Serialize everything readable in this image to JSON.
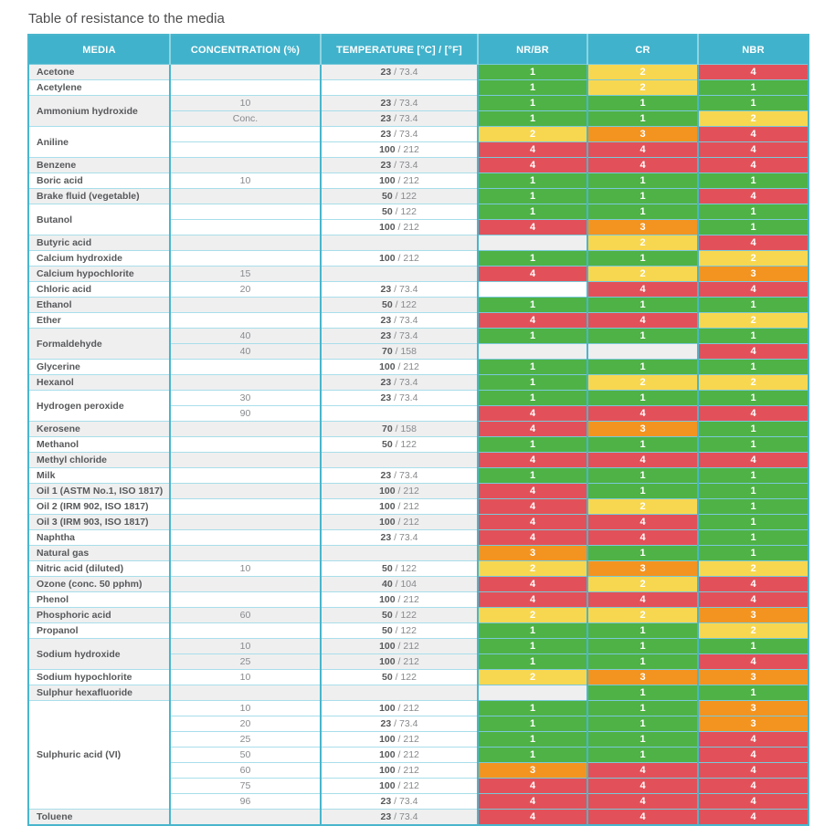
{
  "title": "Table of resistance to the media",
  "colors": {
    "header_bg": "#41b2cb",
    "teal_border": "#49b6cd",
    "teal_row_border": "#79c9da",
    "light_border": "#a8deea",
    "row_alt_bg": "#efeff0",
    "rating_1_green": "#4fb246",
    "rating_2_yellow": "#f8d750",
    "rating_3_orange": "#f39420",
    "rating_4_red": "#e25159"
  },
  "columns": [
    "MEDIA",
    "CONCENTRATION (%)",
    "TEMPERATURE [°C] / [°F]",
    "NR/BR",
    "CR",
    "NBR"
  ],
  "groups": [
    {
      "media": "Acetone",
      "shaded": true,
      "rows": [
        {
          "conc": "",
          "temp_c": "23",
          "temp_f": "73.4",
          "ratings": [
            1,
            2,
            4
          ]
        }
      ]
    },
    {
      "media": "Acetylene",
      "shaded": false,
      "rows": [
        {
          "conc": "",
          "temp_c": null,
          "temp_f": null,
          "ratings": [
            1,
            2,
            1
          ]
        }
      ]
    },
    {
      "media": "Ammonium hydroxide",
      "shaded": true,
      "rows": [
        {
          "conc": "10",
          "temp_c": "23",
          "temp_f": "73.4",
          "ratings": [
            1,
            1,
            1
          ]
        },
        {
          "conc": "Conc.",
          "temp_c": "23",
          "temp_f": "73.4",
          "ratings": [
            1,
            1,
            2
          ]
        }
      ]
    },
    {
      "media": "Aniline",
      "shaded": false,
      "rows": [
        {
          "conc": "",
          "temp_c": "23",
          "temp_f": "73.4",
          "ratings": [
            2,
            3,
            4
          ]
        },
        {
          "conc": "",
          "temp_c": "100",
          "temp_f": "212",
          "ratings": [
            4,
            4,
            4
          ]
        }
      ]
    },
    {
      "media": "Benzene",
      "shaded": true,
      "rows": [
        {
          "conc": "",
          "temp_c": "23",
          "temp_f": "73.4",
          "ratings": [
            4,
            4,
            4
          ]
        }
      ]
    },
    {
      "media": "Boric acid",
      "shaded": false,
      "rows": [
        {
          "conc": "10",
          "temp_c": "100",
          "temp_f": "212",
          "ratings": [
            1,
            1,
            1
          ]
        }
      ]
    },
    {
      "media": "Brake fluid (vegetable)",
      "shaded": true,
      "rows": [
        {
          "conc": "",
          "temp_c": "50",
          "temp_f": "122",
          "ratings": [
            1,
            1,
            4
          ]
        }
      ]
    },
    {
      "media": "Butanol",
      "shaded": false,
      "rows": [
        {
          "conc": "",
          "temp_c": "50",
          "temp_f": "122",
          "ratings": [
            1,
            1,
            1
          ]
        },
        {
          "conc": "",
          "temp_c": "100",
          "temp_f": "212",
          "ratings": [
            4,
            3,
            1
          ]
        }
      ]
    },
    {
      "media": "Butyric acid",
      "shaded": true,
      "rows": [
        {
          "conc": "",
          "temp_c": null,
          "temp_f": null,
          "ratings": [
            null,
            2,
            4
          ]
        }
      ]
    },
    {
      "media": "Calcium hydroxide",
      "shaded": false,
      "rows": [
        {
          "conc": "",
          "temp_c": "100",
          "temp_f": "212",
          "ratings": [
            1,
            1,
            2
          ]
        }
      ]
    },
    {
      "media": "Calcium hypochlorite",
      "shaded": true,
      "rows": [
        {
          "conc": "15",
          "temp_c": null,
          "temp_f": null,
          "ratings": [
            4,
            2,
            3
          ]
        }
      ]
    },
    {
      "media": "Chloric acid",
      "shaded": false,
      "rows": [
        {
          "conc": "20",
          "temp_c": "23",
          "temp_f": "73.4",
          "ratings": [
            null,
            4,
            4
          ]
        }
      ]
    },
    {
      "media": "Ethanol",
      "shaded": true,
      "rows": [
        {
          "conc": "",
          "temp_c": "50",
          "temp_f": "122",
          "ratings": [
            1,
            1,
            1
          ]
        }
      ]
    },
    {
      "media": "Ether",
      "shaded": false,
      "rows": [
        {
          "conc": "",
          "temp_c": "23",
          "temp_f": "73.4",
          "ratings": [
            4,
            4,
            2
          ]
        }
      ]
    },
    {
      "media": "Formaldehyde",
      "shaded": true,
      "rows": [
        {
          "conc": "40",
          "temp_c": "23",
          "temp_f": "73.4",
          "ratings": [
            1,
            1,
            1
          ]
        },
        {
          "conc": "40",
          "temp_c": "70",
          "temp_f": "158",
          "ratings": [
            null,
            null,
            4
          ]
        }
      ]
    },
    {
      "media": "Glycerine",
      "shaded": false,
      "rows": [
        {
          "conc": "",
          "temp_c": "100",
          "temp_f": "212",
          "ratings": [
            1,
            1,
            1
          ]
        }
      ]
    },
    {
      "media": "Hexanol",
      "shaded": true,
      "rows": [
        {
          "conc": "",
          "temp_c": "23",
          "temp_f": "73.4",
          "ratings": [
            1,
            2,
            2
          ]
        }
      ]
    },
    {
      "media": "Hydrogen peroxide",
      "shaded": false,
      "rows": [
        {
          "conc": "30",
          "temp_c": "23",
          "temp_f": "73.4",
          "ratings": [
            1,
            1,
            1
          ]
        },
        {
          "conc": "90",
          "temp_c": null,
          "temp_f": null,
          "ratings": [
            4,
            4,
            4
          ]
        }
      ]
    },
    {
      "media": "Kerosene",
      "shaded": true,
      "rows": [
        {
          "conc": "",
          "temp_c": "70",
          "temp_f": "158",
          "ratings": [
            4,
            3,
            1
          ]
        }
      ]
    },
    {
      "media": "Methanol",
      "shaded": false,
      "rows": [
        {
          "conc": "",
          "temp_c": "50",
          "temp_f": "122",
          "ratings": [
            1,
            1,
            1
          ]
        }
      ]
    },
    {
      "media": "Methyl chloride",
      "shaded": true,
      "rows": [
        {
          "conc": "",
          "temp_c": null,
          "temp_f": null,
          "ratings": [
            4,
            4,
            4
          ]
        }
      ]
    },
    {
      "media": "Milk",
      "shaded": false,
      "rows": [
        {
          "conc": "",
          "temp_c": "23",
          "temp_f": "73.4",
          "ratings": [
            1,
            1,
            1
          ]
        }
      ]
    },
    {
      "media": "Oil 1 (ASTM No.1, ISO 1817)",
      "shaded": true,
      "rows": [
        {
          "conc": "",
          "temp_c": "100",
          "temp_f": "212",
          "ratings": [
            4,
            1,
            1
          ]
        }
      ]
    },
    {
      "media": "Oil 2 (IRM 902, ISO 1817)",
      "shaded": false,
      "rows": [
        {
          "conc": "",
          "temp_c": "100",
          "temp_f": "212",
          "ratings": [
            4,
            2,
            1
          ]
        }
      ]
    },
    {
      "media": "Oil 3 (IRM 903, ISO 1817)",
      "shaded": true,
      "rows": [
        {
          "conc": "",
          "temp_c": "100",
          "temp_f": "212",
          "ratings": [
            4,
            4,
            1
          ]
        }
      ]
    },
    {
      "media": "Naphtha",
      "shaded": false,
      "rows": [
        {
          "conc": "",
          "temp_c": "23",
          "temp_f": "73.4",
          "ratings": [
            4,
            4,
            1
          ]
        }
      ]
    },
    {
      "media": "Natural gas",
      "shaded": true,
      "rows": [
        {
          "conc": "",
          "temp_c": null,
          "temp_f": null,
          "ratings": [
            3,
            1,
            1
          ]
        }
      ]
    },
    {
      "media": "Nitric acid (diluted)",
      "shaded": false,
      "rows": [
        {
          "conc": "10",
          "temp_c": "50",
          "temp_f": "122",
          "ratings": [
            2,
            3,
            2
          ]
        }
      ]
    },
    {
      "media": "Ozone (conc. 50 pphm)",
      "shaded": true,
      "rows": [
        {
          "conc": "",
          "temp_c": "40",
          "temp_f": "104",
          "ratings": [
            4,
            2,
            4
          ]
        }
      ]
    },
    {
      "media": "Phenol",
      "shaded": false,
      "rows": [
        {
          "conc": "",
          "temp_c": "100",
          "temp_f": "212",
          "ratings": [
            4,
            4,
            4
          ]
        }
      ]
    },
    {
      "media": "Phosphoric acid",
      "shaded": true,
      "rows": [
        {
          "conc": "60",
          "temp_c": "50",
          "temp_f": "122",
          "ratings": [
            2,
            2,
            3
          ]
        }
      ]
    },
    {
      "media": "Propanol",
      "shaded": false,
      "rows": [
        {
          "conc": "",
          "temp_c": "50",
          "temp_f": "122",
          "ratings": [
            1,
            1,
            2
          ]
        }
      ]
    },
    {
      "media": "Sodium hydroxide",
      "shaded": true,
      "rows": [
        {
          "conc": "10",
          "temp_c": "100",
          "temp_f": "212",
          "ratings": [
            1,
            1,
            1
          ]
        },
        {
          "conc": "25",
          "temp_c": "100",
          "temp_f": "212",
          "ratings": [
            1,
            1,
            4
          ]
        }
      ]
    },
    {
      "media": "Sodium hypochlorite",
      "shaded": false,
      "rows": [
        {
          "conc": "10",
          "temp_c": "50",
          "temp_f": "122",
          "ratings": [
            2,
            3,
            3
          ]
        }
      ]
    },
    {
      "media": "Sulphur hexafluoride",
      "shaded": true,
      "rows": [
        {
          "conc": "",
          "temp_c": null,
          "temp_f": null,
          "ratings": [
            null,
            1,
            1
          ]
        }
      ]
    },
    {
      "media": "Sulphuric acid (VI)",
      "shaded": false,
      "rows": [
        {
          "conc": "10",
          "temp_c": "100",
          "temp_f": "212",
          "ratings": [
            1,
            1,
            3
          ]
        },
        {
          "conc": "20",
          "temp_c": "23",
          "temp_f": "73.4",
          "ratings": [
            1,
            1,
            3
          ]
        },
        {
          "conc": "25",
          "temp_c": "100",
          "temp_f": "212",
          "ratings": [
            1,
            1,
            4
          ]
        },
        {
          "conc": "50",
          "temp_c": "100",
          "temp_f": "212",
          "ratings": [
            1,
            1,
            4
          ]
        },
        {
          "conc": "60",
          "temp_c": "100",
          "temp_f": "212",
          "ratings": [
            3,
            4,
            4
          ]
        },
        {
          "conc": "75",
          "temp_c": "100",
          "temp_f": "212",
          "ratings": [
            4,
            4,
            4
          ]
        },
        {
          "conc": "96",
          "temp_c": "23",
          "temp_f": "73.4",
          "ratings": [
            4,
            4,
            4
          ]
        }
      ]
    },
    {
      "media": "Toluene",
      "shaded": true,
      "rows": [
        {
          "conc": "",
          "temp_c": "23",
          "temp_f": "73.4",
          "ratings": [
            4,
            4,
            4
          ]
        }
      ]
    }
  ]
}
